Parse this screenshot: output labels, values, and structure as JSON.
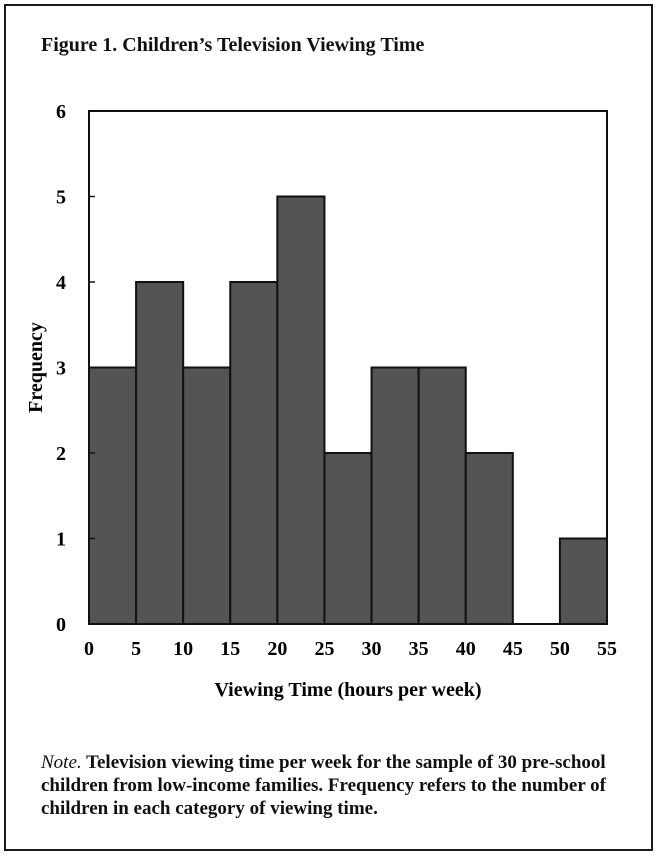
{
  "figure": {
    "title": "Figure 1. Children’s Television Viewing Time"
  },
  "chart_data": {
    "type": "bar",
    "title": "Figure 1. Children’s Television Viewing Time",
    "xlabel": "Viewing Time (hours per week)",
    "ylabel": "Frequency",
    "bins": [
      [
        0,
        5
      ],
      [
        5,
        10
      ],
      [
        10,
        15
      ],
      [
        15,
        20
      ],
      [
        20,
        25
      ],
      [
        25,
        30
      ],
      [
        30,
        35
      ],
      [
        35,
        40
      ],
      [
        40,
        45
      ],
      [
        45,
        50
      ],
      [
        50,
        55
      ]
    ],
    "values": [
      3,
      4,
      3,
      4,
      5,
      2,
      3,
      3,
      2,
      0,
      1
    ],
    "x_ticks": [
      "0",
      "5",
      "10",
      "15",
      "20",
      "25",
      "30",
      "35",
      "40",
      "45",
      "50",
      "55"
    ],
    "y_ticks": [
      "0",
      "1",
      "2",
      "3",
      "4",
      "5",
      "6"
    ],
    "xlim": [
      0,
      55
    ],
    "ylim": [
      0,
      6
    ],
    "grid": false,
    "bar_color": "#545454",
    "bar_edge_color": "#111111"
  },
  "note": {
    "label": "Note.",
    "text": "Television viewing time per week for the sample of 30 pre-school children from low-income families. Frequency refers to the number of children in each category of viewing time."
  }
}
